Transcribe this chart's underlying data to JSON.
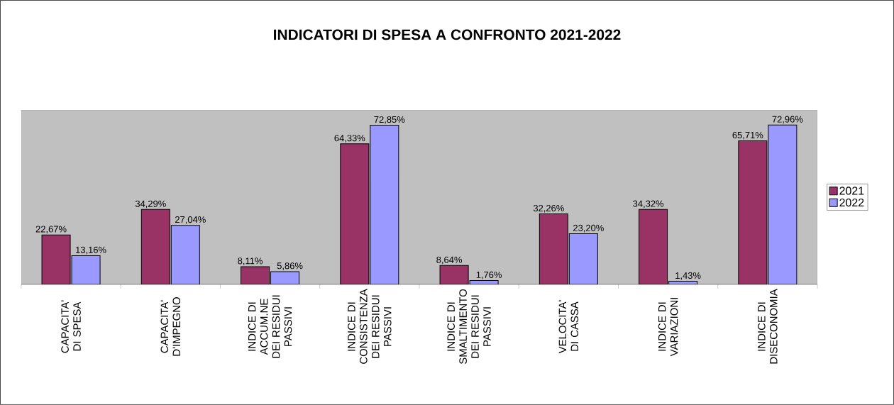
{
  "chart_data": {
    "type": "bar",
    "title": "INDICATORI DI SPESA A CONFRONTO 2021-2022",
    "categories": [
      "CAPACITA' DI SPESA",
      "CAPACITA' D'IMPEGNO",
      "INDICE DI ACCUM.NE DEI RESIDUI PASSIVI",
      "INDICE DI CONSISTENZA DEI RESIDUI PASSIVI",
      "INDICE DI SMALTIMENTO DEI RESIDUI PASSIVI",
      "VELOCITA' DI CASSA",
      "INDICE DI VARIAZIONI",
      "INDICE DI DISECONOMIA"
    ],
    "series": [
      {
        "name": "2021",
        "color": "#993366",
        "values": [
          22.67,
          34.29,
          8.11,
          64.33,
          8.64,
          32.26,
          34.32,
          65.71
        ],
        "value_labels": [
          "22,67%",
          "34,29%",
          "8,11%",
          "64,33%",
          "8,64%",
          "32,26%",
          "34,32%",
          "65,71%"
        ]
      },
      {
        "name": "2022",
        "color": "#9999ff",
        "values": [
          13.16,
          27.04,
          5.86,
          72.85,
          1.76,
          23.2,
          1.43,
          72.96
        ],
        "value_labels": [
          "13,16%",
          "27,04%",
          "5,86%",
          "72,85%",
          "1,76%",
          "23,20%",
          "1,43%",
          "72,96%"
        ]
      }
    ],
    "legend": "right"
  }
}
